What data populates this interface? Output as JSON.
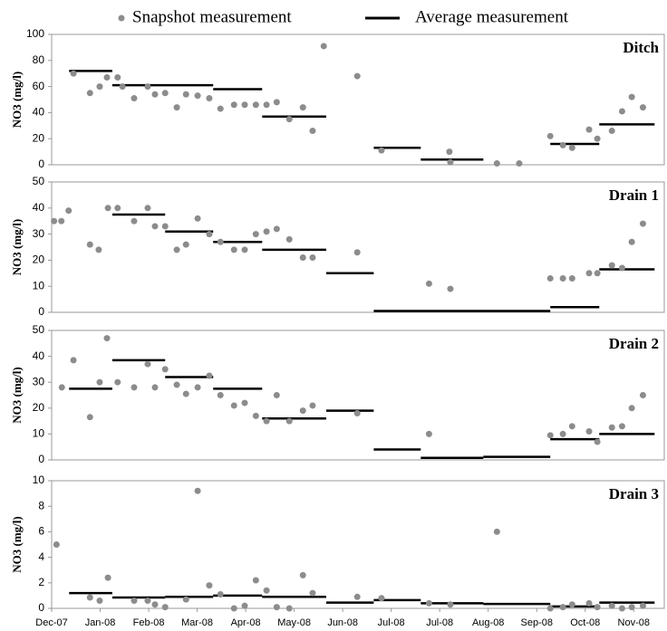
{
  "chart_data": {
    "type": "scatter",
    "series": [
      {
        "name": "Snapshot measurement",
        "color": "#8c8c8c"
      },
      {
        "name": "Average measurement",
        "color": "#000000"
      }
    ],
    "xlim": [
      0,
      12.63
    ],
    "xticks": [
      {
        "value": 0,
        "label": "Dec-07"
      },
      {
        "value": 1,
        "label": "Jan-08"
      },
      {
        "value": 2,
        "label": "Feb-08"
      },
      {
        "value": 3,
        "label": "Mar-08"
      },
      {
        "value": 4,
        "label": "Apr-08"
      },
      {
        "value": 5,
        "label": "May-08"
      },
      {
        "value": 6,
        "label": "Jun-08"
      },
      {
        "value": 7,
        "label": "Jul-08"
      },
      {
        "value": 8,
        "label": "Jul-08"
      },
      {
        "value": 9,
        "label": "Aug-08"
      },
      {
        "value": 10,
        "label": "Sep-08"
      },
      {
        "value": 11,
        "label": "Oct-08"
      },
      {
        "value": 12,
        "label": "Nov-08"
      }
    ],
    "panels": [
      {
        "title": "Ditch",
        "ylabel": "NO3 (mg/l)",
        "ylim": [
          0,
          100
        ],
        "yticks": [
          0,
          20,
          40,
          60,
          80,
          100
        ],
        "snapshot": {
          "x": [
            0.45,
            0.79,
            0.99,
            1.14,
            1.36,
            1.46,
            1.7,
            1.98,
            2.13,
            2.34,
            2.58,
            2.77,
            3.01,
            3.25,
            3.48,
            3.76,
            3.98,
            4.21,
            4.43,
            4.64,
            4.9,
            5.18,
            5.38,
            5.61,
            6.3,
            6.8,
            8.2,
            8.22,
            9.18,
            9.64,
            10.28,
            10.54,
            10.73,
            11.08,
            11.25,
            11.55,
            11.76,
            11.96,
            12.19
          ],
          "values": [
            70,
            55,
            60,
            67,
            67,
            60,
            51,
            60,
            54,
            55,
            44,
            54,
            53,
            51,
            43,
            46,
            46,
            46,
            46,
            48,
            35,
            44,
            26,
            91,
            68,
            11,
            10,
            2,
            1,
            1,
            22,
            15,
            13,
            27,
            20,
            26,
            41,
            52,
            44
          ]
        },
        "average": {
          "x_start": [
            0.36,
            1.25,
            3.33,
            4.34,
            6.64,
            7.61,
            10.28,
            11.29
          ],
          "x_end": [
            1.25,
            3.33,
            4.34,
            5.66,
            7.61,
            8.9,
            11.29,
            12.43
          ],
          "values": [
            72,
            61,
            58,
            37,
            13,
            4,
            16,
            31
          ]
        }
      },
      {
        "title": "Drain 1",
        "ylabel": "NO3 (mg/l)",
        "ylim": [
          0,
          50
        ],
        "yticks": [
          0,
          10,
          20,
          30,
          40,
          50
        ],
        "snapshot": {
          "x": [
            0.05,
            0.2,
            0.35,
            0.79,
            0.97,
            1.16,
            1.36,
            1.7,
            1.98,
            2.13,
            2.34,
            2.58,
            2.77,
            3.01,
            3.25,
            3.48,
            3.76,
            3.98,
            4.21,
            4.43,
            4.64,
            4.9,
            5.18,
            5.38,
            6.3,
            7.78,
            8.22,
            10.28,
            10.54,
            10.73,
            11.08,
            11.25,
            11.55,
            11.76,
            11.96,
            12.19
          ],
          "values": [
            35,
            35,
            39,
            26,
            24,
            40,
            40,
            35,
            40,
            33,
            33,
            24,
            26,
            36,
            30,
            27,
            24,
            24,
            30,
            31,
            32,
            28,
            21,
            21,
            23,
            11,
            9,
            13,
            13,
            13,
            15,
            15,
            18,
            17,
            27,
            34
          ]
        },
        "average": {
          "x_start": [
            1.25,
            2.34,
            3.33,
            4.34,
            5.66,
            6.64,
            10.28,
            11.29
          ],
          "x_end": [
            2.34,
            3.33,
            4.34,
            5.66,
            6.64,
            10.28,
            11.29,
            12.43
          ],
          "values": [
            37.5,
            31,
            27,
            24,
            15,
            0.5,
            2,
            16.5
          ]
        }
      },
      {
        "title": "Drain 2",
        "ylabel": "NO3 (mg/l)",
        "ylim": [
          0,
          50
        ],
        "yticks": [
          0,
          10,
          20,
          30,
          40,
          50
        ],
        "snapshot": {
          "x": [
            0.21,
            0.45,
            0.79,
            0.99,
            1.14,
            1.36,
            1.7,
            1.98,
            2.13,
            2.34,
            2.58,
            2.77,
            3.01,
            3.25,
            3.48,
            3.76,
            3.98,
            4.21,
            4.43,
            4.64,
            4.9,
            5.18,
            5.38,
            6.3,
            7.78,
            10.28,
            10.54,
            10.73,
            11.08,
            11.25,
            11.55,
            11.76,
            11.96,
            12.19
          ],
          "values": [
            28,
            38.5,
            16.5,
            30,
            47,
            30,
            28,
            37,
            28,
            35,
            29,
            25.5,
            28,
            32.5,
            25,
            21,
            22,
            17,
            15,
            25,
            15,
            19,
            21,
            18,
            10,
            9.5,
            10,
            13,
            11,
            7,
            12.5,
            13,
            20,
            25
          ]
        },
        "average": {
          "x_start": [
            0.36,
            1.25,
            2.34,
            3.33,
            4.34,
            5.66,
            6.64,
            7.61,
            8.9,
            10.28,
            11.29
          ],
          "x_end": [
            1.25,
            2.34,
            3.33,
            4.34,
            5.66,
            6.64,
            7.61,
            8.9,
            10.28,
            11.29,
            12.43
          ],
          "values": [
            27.5,
            38.5,
            32,
            27.5,
            16,
            19,
            4,
            0.8,
            1.2,
            8,
            10
          ]
        }
      },
      {
        "title": "Drain 3",
        "ylabel": "NO3 (mg/l)",
        "ylim": [
          0,
          10
        ],
        "yticks": [
          0,
          2,
          4,
          6,
          8,
          10
        ],
        "snapshot": {
          "x": [
            0.1,
            0.79,
            0.99,
            1.16,
            1.7,
            1.98,
            2.13,
            2.34,
            2.77,
            3.01,
            3.25,
            3.48,
            3.76,
            3.98,
            4.21,
            4.43,
            4.64,
            4.9,
            5.18,
            5.38,
            6.3,
            6.8,
            7.78,
            8.22,
            9.18,
            10.28,
            10.54,
            10.73,
            11.08,
            11.25,
            11.55,
            11.76,
            11.96,
            12.19
          ],
          "values": [
            5,
            0.85,
            0.6,
            2.4,
            0.6,
            0.6,
            0.3,
            0.1,
            0.7,
            9.2,
            1.8,
            1.1,
            0,
            0.2,
            2.2,
            1.4,
            0.1,
            0,
            2.6,
            1.2,
            0.9,
            0.8,
            0.4,
            0.3,
            6,
            0,
            0.1,
            0.3,
            0.4,
            0.1,
            0.2,
            0,
            0.1,
            0.2
          ]
        },
        "average": {
          "x_start": [
            0.36,
            1.25,
            2.34,
            3.33,
            4.34,
            5.66,
            6.64,
            7.61,
            8.9,
            10.28,
            11.29
          ],
          "x_end": [
            1.25,
            2.34,
            3.33,
            4.34,
            5.66,
            6.64,
            7.61,
            8.9,
            10.28,
            11.29,
            12.43
          ],
          "values": [
            1.2,
            0.85,
            0.9,
            1.0,
            0.9,
            0.45,
            0.65,
            0.4,
            0.35,
            0.15,
            0.45
          ]
        }
      }
    ]
  }
}
